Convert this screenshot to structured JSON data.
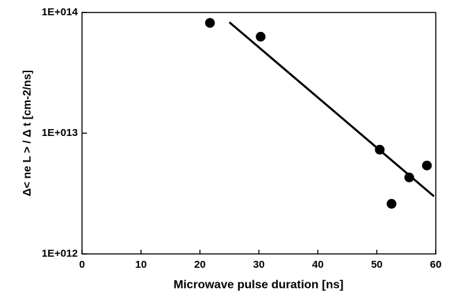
{
  "chart_data": {
    "type": "scatter",
    "xlabel": "Microwave pulse duration [ns]",
    "ylabel": "Δ< ne L > / Δ t  [cm-2/ns]",
    "xlim": [
      0,
      60
    ],
    "xticks": [
      0,
      10,
      20,
      30,
      40,
      50,
      60
    ],
    "ylim": [
      1000000000000.0,
      100000000000000.0
    ],
    "yscale": "log",
    "yticks": [
      {
        "value": 1000000000000.0,
        "label": "1E+012"
      },
      {
        "value": 10000000000000.0,
        "label": "1E+013"
      },
      {
        "value": 100000000000000.0,
        "label": "1E+014"
      }
    ],
    "series": [
      {
        "mode": "markers",
        "color": "#000000",
        "x": [
          21.7,
          30.3,
          50.5,
          52.5,
          55.5,
          58.5
        ],
        "values": [
          82000000000000.0,
          63000000000000.0,
          7300000000000.0,
          2600000000000.0,
          4300000000000.0,
          5400000000000.0
        ]
      },
      {
        "mode": "line",
        "color": "#000000",
        "x": [
          25,
          59.7
        ],
        "values": [
          83000000000000.0,
          3000000000000.0
        ]
      }
    ]
  }
}
